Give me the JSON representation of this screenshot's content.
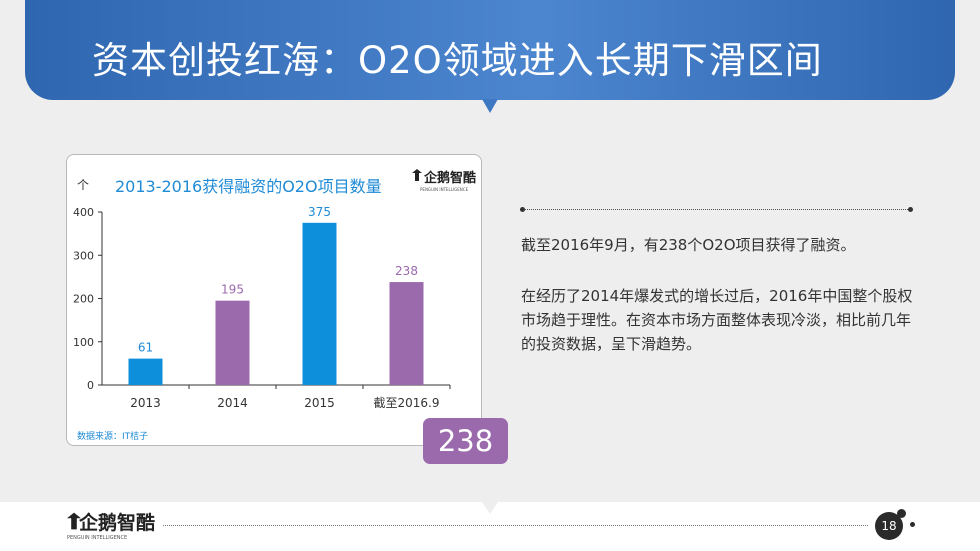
{
  "slide": {
    "title": "资本创投红海：O2O领域进入长期下滑区间",
    "page_number": "18",
    "badge_value": "238",
    "text_paragraph_1": "截至2016年9月，有238个O2O项目获得了融资。",
    "text_paragraph_2": "在经历了2014年爆发式的增长过后，2016年中国整个股权市场趋于理性。在资本市场方面整体表现冷淡，相比前几年的投资数据，呈下滑趋势。",
    "colors": {
      "banner": "#3f78c2",
      "blue_bar": "#0d8fdc",
      "purple_bar": "#9b6aad",
      "accent": "#1f8bd6"
    }
  },
  "logo": {
    "text": "企鹅智酷",
    "subtext": "PENGUIN INTELLIGENCE"
  },
  "chart_card": {
    "unit": "个",
    "source": "数据来源：IT桔子"
  },
  "chart_data": {
    "type": "bar",
    "title": "2013-2016获得融资的O2O项目数量",
    "categories": [
      "2013",
      "2014",
      "2015",
      "截至2016.9"
    ],
    "values": [
      61,
      195,
      375,
      238
    ],
    "bar_colors": [
      "#0d8fdc",
      "#9b6aad",
      "#0d8fdc",
      "#9b6aad"
    ],
    "label_colors": [
      "#1f8bd6",
      "#9b6aad",
      "#1f8bd6",
      "#9b6aad"
    ],
    "ylim": [
      0,
      400
    ],
    "yticks": [
      0,
      100,
      200,
      300,
      400
    ],
    "xlabel": "",
    "ylabel": "个",
    "grid": false
  }
}
